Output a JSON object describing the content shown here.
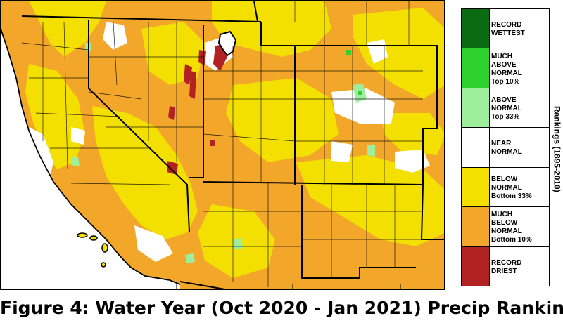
{
  "map": {
    "colors": {
      "record_driest": "#b22222",
      "much_below": "#f2a62a",
      "below": "#f3e000",
      "near": "#ffffff",
      "above": "#9dee9d",
      "much_above": "#2ed12e",
      "record_wettest": "#0b6b12",
      "boundary": "#000000"
    }
  },
  "legend": {
    "axis_label": "Rankings (1895-2010)",
    "items": [
      {
        "label": "RECORD\nWETTEST",
        "color": "#0b6b12"
      },
      {
        "label": "MUCH\nABOVE\nNORMAL\nTop 10%",
        "color": "#2ed12e"
      },
      {
        "label": "ABOVE\nNORMAL\nTop 33%",
        "color": "#9dee9d"
      },
      {
        "label": "NEAR\nNORMAL",
        "color": "#ffffff"
      },
      {
        "label": "BELOW\nNORMAL\nBottom 33%",
        "color": "#f3e000"
      },
      {
        "label": "MUCH\nBELOW\nNORMAL\nBottom 10%",
        "color": "#f2a62a"
      },
      {
        "label": "RECORD\nDRIEST",
        "color": "#b22222"
      }
    ]
  },
  "caption": "Figure 4: Water Year (Oct 2020 - Jan 2021) Precip Rankings"
}
